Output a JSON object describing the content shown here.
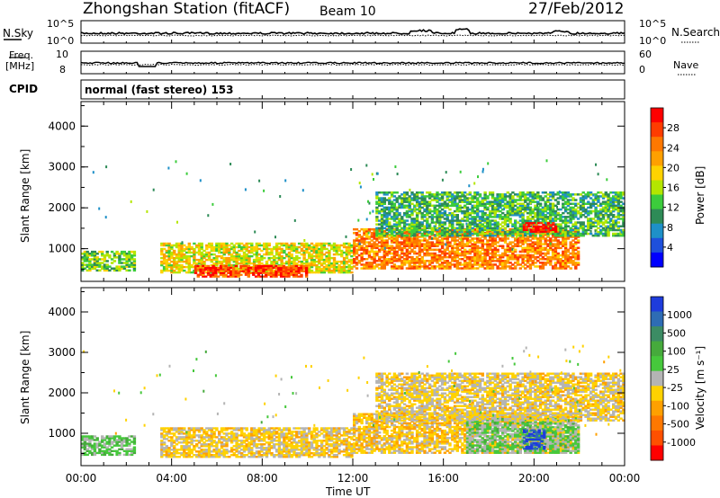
{
  "header": {
    "station": "Zhongshan Station (fitACF)",
    "beam": "Beam 10",
    "date": "27/Feb/2012"
  },
  "strip_panels": {
    "nsky_label": "N.Sky",
    "nsky_ticks": [
      "10^5",
      "10^0"
    ],
    "nsearch_label": "N.Search",
    "nsearch_ticks": [
      "10^5",
      "10^0"
    ],
    "freq_label_line1": "Freq.",
    "freq_label_line2": "[MHz]",
    "freq_ticks": [
      "10",
      "8"
    ],
    "nave_label": "Nave",
    "nave_ticks": [
      "60",
      "0"
    ],
    "cpid_label": "CPID",
    "cpid_value": "normal (fast stereo) 153"
  },
  "power_colorbar": {
    "title": "Power [dB]",
    "ticks": [
      "28",
      "24",
      "20",
      "16",
      "12",
      "8",
      "4"
    ],
    "colors": [
      "#ff0000",
      "#ff3c00",
      "#ff7800",
      "#ffa000",
      "#ffd200",
      "#b4e600",
      "#3ccc3c",
      "#2e8b57",
      "#1e90c8",
      "#1e50dc",
      "#0000ff"
    ]
  },
  "velocity_colorbar": {
    "title": "Velocity [m s⁻¹]",
    "ticks": [
      "1000",
      "500",
      "100",
      "25",
      "-25",
      "-100",
      "-500",
      "-1000"
    ],
    "colors": [
      "#1e3cdc",
      "#2e6cb4",
      "#3c8c64",
      "#46aa3c",
      "#46c83c",
      "#b4b4b4",
      "#ffd200",
      "#ffa000",
      "#ff7800",
      "#ff5000",
      "#ff0000"
    ]
  },
  "x_axis": {
    "label": "Time UT",
    "ticks": [
      "00:00",
      "04:00",
      "08:00",
      "12:00",
      "16:00",
      "20:00",
      "00:00"
    ]
  },
  "chart_data": [
    {
      "type": "heatmap",
      "title": "",
      "xlabel": "",
      "ylabel": "Slant Range [km]",
      "y_ticks": [
        "1000",
        "2000",
        "3000",
        "4000"
      ],
      "ylim": [
        200,
        4600
      ],
      "xlim": [
        0,
        24
      ],
      "colorbar_label": "Power [dB]",
      "colorbar_range": [
        0,
        32
      ],
      "description_regions": [
        {
          "t_start": 0.0,
          "t_end": 2.4,
          "r_start": 450,
          "r_end": 950,
          "value": 14
        },
        {
          "t_start": 3.5,
          "t_end": 12.0,
          "r_start": 400,
          "r_end": 1150,
          "value": 18
        },
        {
          "t_start": 5.0,
          "t_end": 10.0,
          "r_start": 300,
          "r_end": 600,
          "value": 28
        },
        {
          "t_start": 12.0,
          "t_end": 22.0,
          "r_start": 500,
          "r_end": 1500,
          "value": 24
        },
        {
          "t_start": 13.0,
          "t_end": 24.0,
          "r_start": 1300,
          "r_end": 2400,
          "value": 12
        },
        {
          "t_start": 19.5,
          "t_end": 21.0,
          "r_start": 1400,
          "r_end": 1650,
          "value": 30
        }
      ]
    },
    {
      "type": "heatmap",
      "title": "",
      "xlabel": "Time UT",
      "ylabel": "Slant Range [km]",
      "y_ticks": [
        "1000",
        "2000",
        "3000",
        "4000"
      ],
      "ylim": [
        200,
        4600
      ],
      "xlim": [
        0,
        24
      ],
      "colorbar_label": "Velocity [m s⁻¹]",
      "colorbar_range": [
        -1000,
        1000
      ],
      "description_regions": [
        {
          "t_start": 0.0,
          "t_end": 2.4,
          "r_start": 450,
          "r_end": 950,
          "value": 150
        },
        {
          "t_start": 3.5,
          "t_end": 12.0,
          "r_start": 400,
          "r_end": 1150,
          "value": -150
        },
        {
          "t_start": 12.0,
          "t_end": 22.0,
          "r_start": 500,
          "r_end": 1500,
          "value": -200
        },
        {
          "t_start": 17.0,
          "t_end": 22.0,
          "r_start": 500,
          "r_end": 1400,
          "value": 120
        },
        {
          "t_start": 19.5,
          "t_end": 20.5,
          "r_start": 600,
          "r_end": 1100,
          "value": 900
        },
        {
          "t_start": 13.0,
          "t_end": 24.0,
          "r_start": 1300,
          "r_end": 2500,
          "value": -120
        }
      ]
    }
  ]
}
